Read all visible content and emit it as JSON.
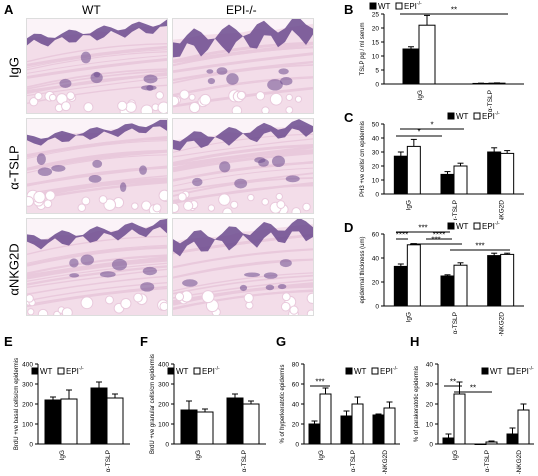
{
  "panel_a": {
    "letter": "A",
    "columns": [
      "WT",
      "EPI-/-"
    ],
    "rows": [
      "IgG",
      "α-TSLP",
      "αNKG2D"
    ]
  },
  "legend": {
    "wt": "WT",
    "epi": "EPI",
    "epi_sup": "-/-"
  },
  "colors": {
    "wt": "#000000",
    "epi": "#ffffff",
    "skin_dark": "#6b4a8e",
    "skin_light": "#e9c9dc",
    "stroma": "#f3dde9"
  },
  "chart_data": [
    {
      "id": "B",
      "type": "bar",
      "categories": [
        "IgG",
        "α-TSLP"
      ],
      "series": [
        {
          "name": "WT",
          "values": [
            12.5,
            0.2
          ],
          "errors": [
            0.8,
            0.1
          ]
        },
        {
          "name": "EPI-/-",
          "values": [
            21,
            0.3
          ],
          "errors": [
            3.5,
            0.1
          ]
        }
      ],
      "ylabel": "TSLP pg / ml serum",
      "ylim": [
        0,
        25
      ],
      "yticks": [
        0,
        5,
        10,
        15,
        20,
        25
      ],
      "annotations": [
        "**"
      ],
      "legend": "top-left"
    },
    {
      "id": "C",
      "type": "bar",
      "categories": [
        "IgG",
        "α-TSLP",
        "α-NKG2D"
      ],
      "series": [
        {
          "name": "WT",
          "values": [
            27,
            14,
            30
          ],
          "errors": [
            3,
            2,
            3
          ]
        },
        {
          "name": "EPI-/-",
          "values": [
            34,
            20,
            29
          ],
          "errors": [
            5,
            2,
            2
          ]
        }
      ],
      "ylabel": "PH3 +ve cells/ cm epidermis",
      "ylim": [
        0,
        50
      ],
      "yticks": [
        0,
        10,
        20,
        30,
        40,
        50
      ],
      "annotations": [
        "*",
        "*"
      ],
      "legend": "top-right"
    },
    {
      "id": "D",
      "type": "bar",
      "categories": [
        "IgG",
        "α-TSLP",
        "α-NKG2D"
      ],
      "series": [
        {
          "name": "WT",
          "values": [
            33,
            25,
            42
          ],
          "errors": [
            2,
            1,
            2
          ]
        },
        {
          "name": "EPI-/-",
          "values": [
            51,
            34,
            43
          ],
          "errors": [
            1,
            2,
            1
          ]
        }
      ],
      "ylabel": "epidermal thickness (um)",
      "ylim": [
        0,
        60
      ],
      "yticks": [
        0,
        20,
        40,
        60
      ],
      "annotations": [
        "***",
        "****",
        "***",
        "****",
        "***"
      ],
      "legend": "top-right"
    },
    {
      "id": "E",
      "type": "bar",
      "categories": [
        "IgG",
        "α-TSLP"
      ],
      "series": [
        {
          "name": "WT",
          "values": [
            220,
            280
          ],
          "errors": [
            15,
            30
          ]
        },
        {
          "name": "EPI-/-",
          "values": [
            225,
            230
          ],
          "errors": [
            45,
            20
          ]
        }
      ],
      "ylabel": "BrdU +ve basal cells/cm epidermis",
      "ylim": [
        0,
        400
      ],
      "yticks": [
        0,
        100,
        200,
        300,
        400
      ],
      "legend": "top"
    },
    {
      "id": "F",
      "type": "bar",
      "categories": [
        "IgG",
        "α-TSLP"
      ],
      "series": [
        {
          "name": "WT",
          "values": [
            170,
            230
          ],
          "errors": [
            45,
            20
          ]
        },
        {
          "name": "EPI-/-",
          "values": [
            160,
            200
          ],
          "errors": [
            15,
            15
          ]
        }
      ],
      "ylabel": "BrdU +ve granular cells/cm epidermis",
      "ylim": [
        0,
        400
      ],
      "yticks": [
        0,
        100,
        200,
        300,
        400
      ],
      "legend": "top"
    },
    {
      "id": "G",
      "type": "bar",
      "categories": [
        "IgG",
        "α-TSLP",
        "α-NKG2D"
      ],
      "series": [
        {
          "name": "WT",
          "values": [
            20,
            28,
            29
          ],
          "errors": [
            3,
            5,
            1
          ]
        },
        {
          "name": "EPI-/-",
          "values": [
            50,
            40,
            36
          ],
          "errors": [
            6,
            7,
            6
          ]
        }
      ],
      "ylabel": "% of hyperkeratotic epidermis",
      "ylim": [
        0,
        80
      ],
      "yticks": [
        0,
        20,
        40,
        60,
        80
      ],
      "annotations": [
        "***"
      ],
      "legend": "top"
    },
    {
      "id": "H",
      "type": "bar",
      "categories": [
        "IgG",
        "α-TSLP",
        "α-NKG2D"
      ],
      "series": [
        {
          "name": "WT",
          "values": [
            3,
            0,
            5
          ],
          "errors": [
            2,
            0,
            3
          ]
        },
        {
          "name": "EPI-/-",
          "values": [
            25,
            1,
            17
          ],
          "errors": [
            6,
            0.5,
            3
          ]
        }
      ],
      "ylabel": "% of parakeratotic epidermis",
      "ylim": [
        0,
        40
      ],
      "yticks": [
        0,
        10,
        20,
        30,
        40
      ],
      "annotations": [
        "**",
        "**"
      ],
      "legend": "top"
    }
  ]
}
